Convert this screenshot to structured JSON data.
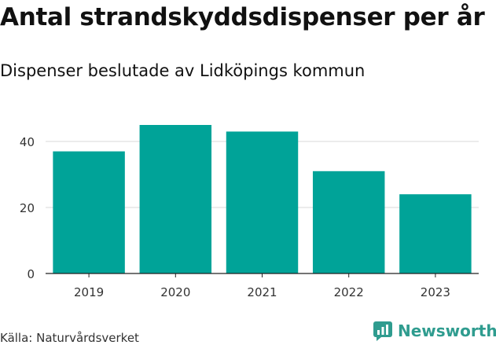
{
  "chart_data": {
    "type": "bar",
    "title": "Antal strandskyddsdispenser per år",
    "subtitle": "Dispenser beslutade av Lidköpings kommun",
    "categories": [
      "2019",
      "2020",
      "2021",
      "2022",
      "2023"
    ],
    "values": [
      37,
      45,
      43,
      31,
      24
    ],
    "yticks": [
      "0",
      "20",
      "40"
    ],
    "ylim": [
      0,
      50
    ],
    "xlabel": "",
    "ylabel": "",
    "grid": true,
    "bar_color": "#00a398"
  },
  "footer": {
    "source": "Källa: Naturvårdsverket",
    "brand": "Newsworthy"
  },
  "colors": {
    "brand": "#2f9c8f",
    "grid": "#d9d9d9",
    "axis": "#333333"
  }
}
